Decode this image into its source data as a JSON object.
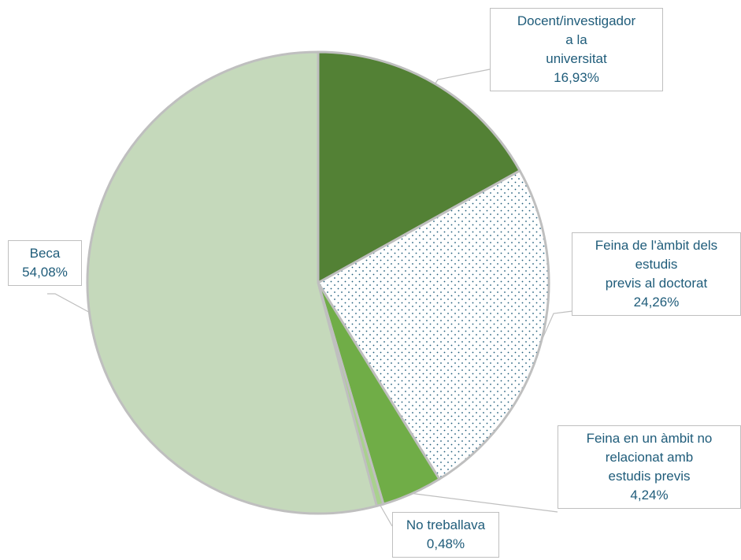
{
  "chart_data": {
    "type": "pie",
    "categories": [
      "Docent/investigador\na la\nuniversitat",
      "Feina de l'àmbit dels\nestudis\nprevis al doctorat",
      "Feina en un àmbit no\nrelacionat amb\nestudis previs",
      "No treballava",
      "Beca"
    ],
    "values": [
      16.93,
      24.26,
      4.24,
      0.48,
      54.08
    ],
    "value_labels": [
      "16,93%",
      "24,26%",
      "4,24%",
      "0,48%",
      "54,08%"
    ],
    "colors": [
      "#538135",
      "dotted",
      "#70ad47",
      "#a9d18e",
      "#c5d9bb"
    ]
  }
}
